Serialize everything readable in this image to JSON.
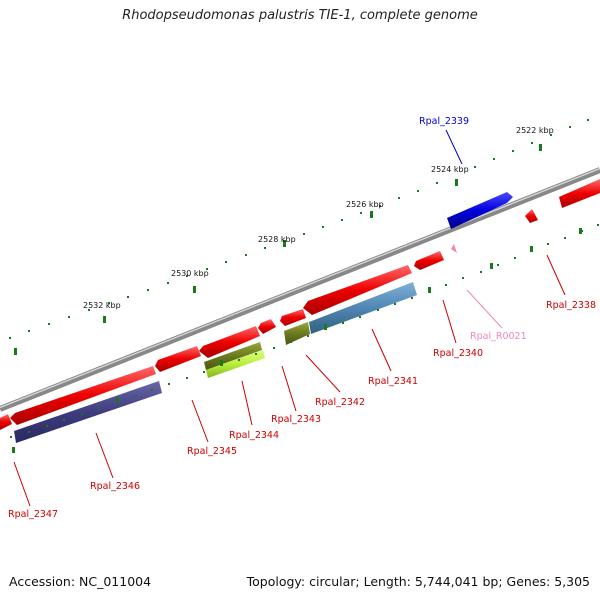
{
  "title": "Rhodopseudomonas palustris TIE-1, complete genome",
  "footer": {
    "accession": "Accession: NC_011004",
    "summary": "Topology: circular; Length: 5,744,041 bp; Genes: 5,305"
  },
  "scale_labels": [
    "2522 kbp",
    "2524 kbp",
    "2526 kbp",
    "2528 kbp",
    "2530 kbp",
    "2532 kbp"
  ],
  "gene_labels": [
    {
      "name": "Rpal_2339",
      "color": "#0000cc"
    },
    {
      "name": "Rpal_2338",
      "color": "#cc0000"
    },
    {
      "name": "Rpal_R0021",
      "color": "#ee88bb"
    },
    {
      "name": "Rpal_2340",
      "color": "#cc0000"
    },
    {
      "name": "Rpal_2341",
      "color": "#cc0000"
    },
    {
      "name": "Rpal_2342",
      "color": "#cc0000"
    },
    {
      "name": "Rpal_2343",
      "color": "#cc0000"
    },
    {
      "name": "Rpal_2344",
      "color": "#cc0000"
    },
    {
      "name": "Rpal_2345",
      "color": "#cc0000"
    },
    {
      "name": "Rpal_2346",
      "color": "#cc0000"
    },
    {
      "name": "Rpal_2347",
      "color": "#cc0000"
    }
  ],
  "colors": {
    "cds": "#ee0000",
    "cds_blue": "#0000dd",
    "trna": "#ee88bb",
    "cog_navy": "#3f3c7f",
    "cog_steel": "#4f86b3",
    "cog_olive": "#6b7a1e",
    "cog_lime": "#b8ee3c",
    "backbone": "#888888",
    "tick": "#1a7a1a"
  }
}
